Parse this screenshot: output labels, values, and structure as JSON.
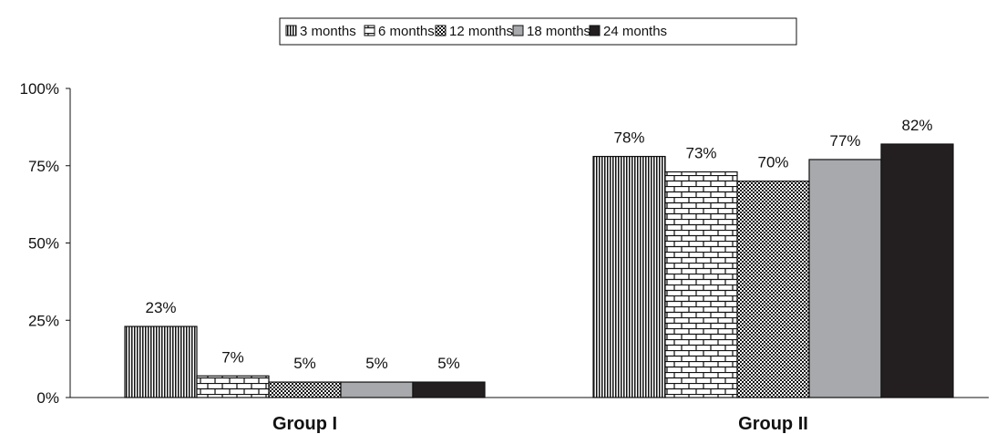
{
  "chart_data": {
    "type": "bar",
    "categories": [
      "Group I",
      "Group II"
    ],
    "series": [
      {
        "name": "3 months",
        "values": [
          23,
          78
        ],
        "pattern": "vertical-lines",
        "color": "#ffffff"
      },
      {
        "name": "6 months",
        "values": [
          7,
          73
        ],
        "pattern": "brick",
        "color": "#ffffff"
      },
      {
        "name": "12 months",
        "values": [
          5,
          70
        ],
        "pattern": "checker",
        "color": "#ffffff"
      },
      {
        "name": "18 months",
        "values": [
          5,
          77
        ],
        "pattern": "solid",
        "color": "#a7a9ac"
      },
      {
        "name": "24 months",
        "values": [
          5,
          82
        ],
        "pattern": "solid",
        "color": "#231f20"
      }
    ],
    "data_labels": [
      [
        "23%",
        "7%",
        "5%",
        "5%",
        "5%"
      ],
      [
        "78%",
        "73%",
        "70%",
        "77%",
        "82%"
      ]
    ],
    "y_ticks": [
      "0%",
      "25%",
      "50%",
      "75%",
      "100%"
    ],
    "ylim": [
      0,
      100
    ],
    "legend_position": "top-center",
    "grid": false
  }
}
